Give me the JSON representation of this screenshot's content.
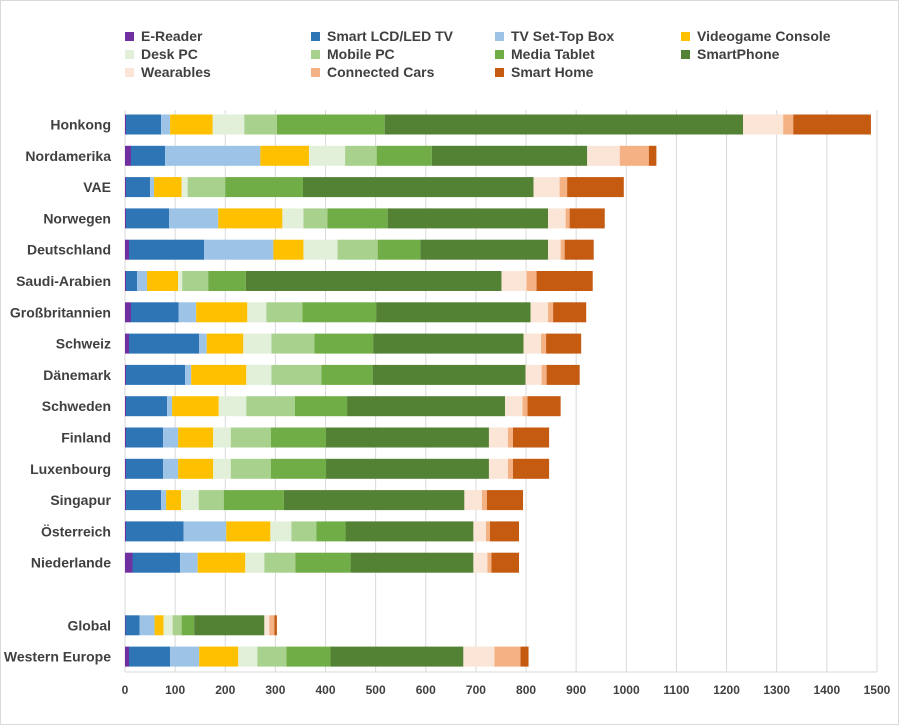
{
  "chart_data": {
    "type": "bar",
    "orientation": "horizontal",
    "stacked": true,
    "title": "",
    "xlabel": "",
    "ylabel": "",
    "xlim": [
      0,
      1500
    ],
    "xticks": [
      0,
      100,
      200,
      300,
      400,
      500,
      600,
      700,
      800,
      900,
      1000,
      1100,
      1200,
      1300,
      1400,
      1500
    ],
    "grid": "vertical gridlines",
    "legend_position": "top",
    "categories": [
      "Honkong",
      "Nordamerika",
      "VAE",
      "Norwegen",
      "Deutschland",
      "Saudi-Arabien",
      "Großbritannien",
      "Schweiz",
      "Dänemark",
      "Schweden",
      "Finland",
      "Luxenbourg",
      "Singapur",
      "Österreich",
      "Niederlande",
      "",
      "Global",
      "Western Europe"
    ],
    "series": [
      {
        "name": "E-Reader",
        "color": "#7030a0",
        "values": [
          2,
          12,
          2,
          2,
          8,
          2,
          12,
          8,
          2,
          2,
          2,
          2,
          2,
          2,
          15,
          null,
          1,
          8
        ]
      },
      {
        "name": "Smart LCD/LED TV",
        "color": "#2e75b6",
        "values": [
          70,
          68,
          48,
          86,
          150,
          22,
          95,
          140,
          118,
          82,
          74,
          74,
          70,
          115,
          95,
          null,
          28,
          82
        ]
      },
      {
        "name": "TV Set-Top Box",
        "color": "#9dc3e6",
        "values": [
          18,
          190,
          8,
          98,
          138,
          20,
          35,
          15,
          12,
          10,
          30,
          30,
          10,
          85,
          35,
          null,
          30,
          58
        ]
      },
      {
        "name": "Videogame Console",
        "color": "#ffc000",
        "values": [
          85,
          97,
          55,
          128,
          60,
          62,
          102,
          73,
          110,
          93,
          70,
          70,
          30,
          88,
          95,
          null,
          18,
          78
        ]
      },
      {
        "name": "Desk PC",
        "color": "#e2f0d9",
        "values": [
          63,
          72,
          12,
          42,
          68,
          8,
          38,
          56,
          50,
          55,
          35,
          35,
          35,
          42,
          38,
          null,
          18,
          38
        ]
      },
      {
        "name": "Mobile PC",
        "color": "#a9d18e",
        "values": [
          65,
          63,
          75,
          48,
          80,
          52,
          72,
          86,
          100,
          97,
          80,
          80,
          50,
          50,
          62,
          null,
          18,
          58
        ]
      },
      {
        "name": "Media Tablet",
        "color": "#70ad47",
        "values": [
          215,
          110,
          155,
          120,
          85,
          75,
          147,
          117,
          102,
          104,
          110,
          110,
          120,
          58,
          110,
          null,
          25,
          88
        ]
      },
      {
        "name": "SmartPhone",
        "color": "#548235",
        "values": [
          715,
          310,
          460,
          320,
          255,
          510,
          308,
          300,
          305,
          315,
          325,
          325,
          360,
          255,
          245,
          null,
          140,
          265
        ]
      },
      {
        "name": "Wearables",
        "color": "#fbe5d6",
        "values": [
          80,
          65,
          52,
          35,
          25,
          50,
          35,
          35,
          32,
          35,
          38,
          38,
          35,
          25,
          28,
          null,
          10,
          62
        ]
      },
      {
        "name": "Connected Cars",
        "color": "#f4b183",
        "values": [
          20,
          58,
          15,
          8,
          8,
          20,
          10,
          10,
          10,
          10,
          10,
          10,
          10,
          8,
          8,
          null,
          10,
          52
        ]
      },
      {
        "name": "Smart Home",
        "color": "#c55a11",
        "values": [
          155,
          15,
          113,
          70,
          58,
          112,
          66,
          70,
          66,
          66,
          72,
          72,
          72,
          58,
          55,
          null,
          5,
          16
        ]
      }
    ]
  }
}
